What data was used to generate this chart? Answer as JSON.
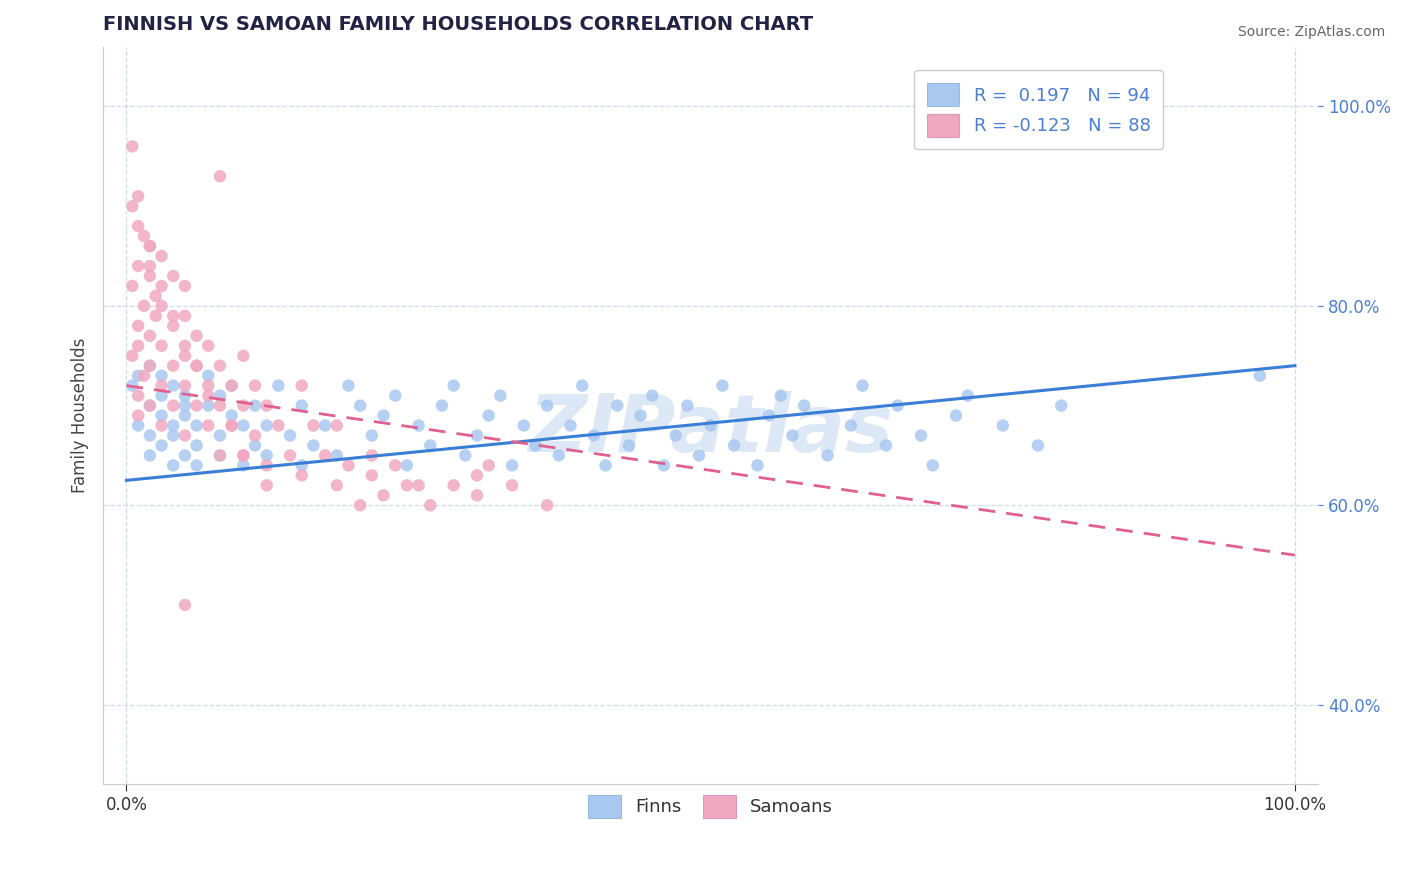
{
  "title": "FINNISH VS SAMOAN FAMILY HOUSEHOLDS CORRELATION CHART",
  "source": "Source: ZipAtlas.com",
  "ylabel": "Family Households",
  "xlim": [
    -0.02,
    1.02
  ],
  "ylim": [
    0.32,
    1.06
  ],
  "y_tick_values": [
    0.4,
    0.6,
    0.8,
    1.0
  ],
  "y_tick_labels": [
    "40.0%",
    "60.0%",
    "80.0%",
    "100.0%"
  ],
  "x_tick_values": [
    0.0,
    1.0
  ],
  "x_tick_labels": [
    "0.0%",
    "100.0%"
  ],
  "legend_R_finns": "0.197",
  "legend_N_finns": "94",
  "legend_R_samoans": "-0.123",
  "legend_N_samoans": "88",
  "finns_color": "#a8c8f0",
  "samoans_color": "#f0a8c0",
  "finns_line_color": "#3a7fd5",
  "samoans_line_color": "#e06090",
  "watermark": "ZIPatlas",
  "watermark_color": "#dce8f5",
  "title_color": "#222244",
  "source_color": "#666666",
  "tick_color": "#4a7fd5",
  "grid_color": "#d0daea",
  "finns_x": [
    0.005,
    0.01,
    0.01,
    0.02,
    0.02,
    0.02,
    0.02,
    0.03,
    0.03,
    0.03,
    0.03,
    0.04,
    0.04,
    0.04,
    0.04,
    0.05,
    0.05,
    0.05,
    0.05,
    0.06,
    0.06,
    0.06,
    0.07,
    0.07,
    0.08,
    0.08,
    0.08,
    0.09,
    0.09,
    0.1,
    0.1,
    0.11,
    0.11,
    0.12,
    0.12,
    0.13,
    0.14,
    0.15,
    0.15,
    0.16,
    0.17,
    0.18,
    0.19,
    0.2,
    0.21,
    0.22,
    0.23,
    0.24,
    0.25,
    0.26,
    0.27,
    0.28,
    0.29,
    0.3,
    0.31,
    0.32,
    0.33,
    0.34,
    0.35,
    0.36,
    0.37,
    0.38,
    0.39,
    0.4,
    0.41,
    0.42,
    0.43,
    0.44,
    0.45,
    0.46,
    0.47,
    0.48,
    0.49,
    0.5,
    0.51,
    0.52,
    0.54,
    0.55,
    0.56,
    0.57,
    0.58,
    0.6,
    0.62,
    0.63,
    0.65,
    0.66,
    0.68,
    0.69,
    0.71,
    0.72,
    0.75,
    0.78,
    0.8,
    0.97
  ],
  "finns_y": [
    0.72,
    0.68,
    0.73,
    0.67,
    0.7,
    0.65,
    0.74,
    0.69,
    0.71,
    0.66,
    0.73,
    0.64,
    0.68,
    0.72,
    0.67,
    0.7,
    0.65,
    0.69,
    0.71,
    0.66,
    0.64,
    0.68,
    0.7,
    0.73,
    0.67,
    0.65,
    0.71,
    0.69,
    0.72,
    0.64,
    0.68,
    0.66,
    0.7,
    0.65,
    0.68,
    0.72,
    0.67,
    0.64,
    0.7,
    0.66,
    0.68,
    0.65,
    0.72,
    0.7,
    0.67,
    0.69,
    0.71,
    0.64,
    0.68,
    0.66,
    0.7,
    0.72,
    0.65,
    0.67,
    0.69,
    0.71,
    0.64,
    0.68,
    0.66,
    0.7,
    0.65,
    0.68,
    0.72,
    0.67,
    0.64,
    0.7,
    0.66,
    0.69,
    0.71,
    0.64,
    0.67,
    0.7,
    0.65,
    0.68,
    0.72,
    0.66,
    0.64,
    0.69,
    0.71,
    0.67,
    0.7,
    0.65,
    0.68,
    0.72,
    0.66,
    0.7,
    0.67,
    0.64,
    0.69,
    0.71,
    0.68,
    0.66,
    0.7,
    0.73
  ],
  "samoans_x": [
    0.005,
    0.005,
    0.01,
    0.01,
    0.01,
    0.01,
    0.01,
    0.015,
    0.015,
    0.015,
    0.02,
    0.02,
    0.02,
    0.02,
    0.02,
    0.025,
    0.025,
    0.03,
    0.03,
    0.03,
    0.03,
    0.03,
    0.04,
    0.04,
    0.04,
    0.04,
    0.05,
    0.05,
    0.05,
    0.05,
    0.05,
    0.06,
    0.06,
    0.06,
    0.07,
    0.07,
    0.07,
    0.08,
    0.08,
    0.08,
    0.09,
    0.09,
    0.1,
    0.1,
    0.1,
    0.11,
    0.11,
    0.12,
    0.12,
    0.13,
    0.14,
    0.15,
    0.16,
    0.17,
    0.18,
    0.19,
    0.2,
    0.21,
    0.22,
    0.23,
    0.24,
    0.26,
    0.28,
    0.3,
    0.31,
    0.33,
    0.36,
    0.005,
    0.01,
    0.02,
    0.03,
    0.04,
    0.05,
    0.06,
    0.07,
    0.09,
    0.1,
    0.12,
    0.15,
    0.18,
    0.21,
    0.25,
    0.3,
    0.005,
    0.01,
    0.02,
    0.08,
    0.05
  ],
  "samoans_y": [
    0.75,
    0.82,
    0.78,
    0.71,
    0.84,
    0.69,
    0.76,
    0.8,
    0.73,
    0.87,
    0.77,
    0.83,
    0.7,
    0.86,
    0.74,
    0.79,
    0.81,
    0.68,
    0.85,
    0.72,
    0.76,
    0.8,
    0.83,
    0.7,
    0.74,
    0.78,
    0.67,
    0.82,
    0.72,
    0.75,
    0.79,
    0.7,
    0.74,
    0.77,
    0.68,
    0.72,
    0.76,
    0.65,
    0.7,
    0.74,
    0.68,
    0.72,
    0.65,
    0.7,
    0.75,
    0.67,
    0.72,
    0.64,
    0.7,
    0.68,
    0.65,
    0.63,
    0.68,
    0.65,
    0.62,
    0.64,
    0.6,
    0.63,
    0.61,
    0.64,
    0.62,
    0.6,
    0.62,
    0.63,
    0.64,
    0.62,
    0.6,
    0.9,
    0.88,
    0.84,
    0.82,
    0.79,
    0.76,
    0.74,
    0.71,
    0.68,
    0.65,
    0.62,
    0.72,
    0.68,
    0.65,
    0.62,
    0.61,
    0.96,
    0.91,
    0.86,
    0.93,
    0.5
  ],
  "finns_line_x": [
    0.0,
    1.0
  ],
  "finns_line_y": [
    0.625,
    0.74
  ],
  "samoans_line_x": [
    0.0,
    1.0
  ],
  "samoans_line_y": [
    0.72,
    0.55
  ]
}
